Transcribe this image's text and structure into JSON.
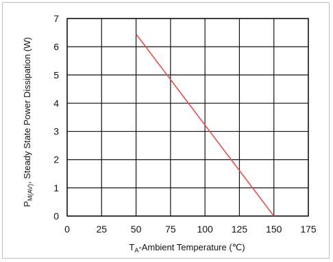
{
  "chart_data": {
    "type": "line",
    "title": "",
    "xlabel_main": "T",
    "xlabel_sub": "A",
    "xlabel_rest": "-Ambient Temperature (℃)",
    "ylabel_main": "P",
    "ylabel_sub": "M(AV)",
    "ylabel_rest": ", Steady State Power Dissipation (W)",
    "xlim": [
      0,
      175
    ],
    "ylim": [
      0,
      7
    ],
    "x_ticks": [
      "0",
      "25",
      "50",
      "75",
      "100",
      "125",
      "150",
      "175"
    ],
    "y_ticks": [
      "0",
      "1",
      "2",
      "3",
      "4",
      "5",
      "6",
      "7"
    ],
    "grid": true,
    "line_color": "#e0504a",
    "series": [
      {
        "x": [
          50,
          150
        ],
        "y": [
          6.45,
          0
        ]
      }
    ]
  }
}
